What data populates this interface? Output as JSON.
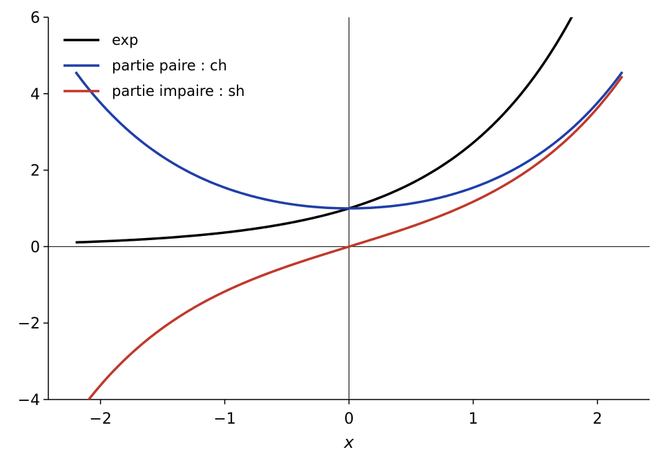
{
  "chart_data": {
    "type": "line",
    "xlabel": "x",
    "ylabel": "",
    "xlim": [
      -2.42,
      2.42
    ],
    "ylim": [
      -4,
      6
    ],
    "x_ticks": [
      -2,
      -1,
      0,
      1,
      2
    ],
    "x_tick_labels": [
      "−2",
      "−1",
      "0",
      "1",
      "2"
    ],
    "y_ticks": [
      -4,
      -2,
      0,
      2,
      4,
      6
    ],
    "y_tick_labels": [
      "−4",
      "−2",
      "0",
      "2",
      "4",
      "6"
    ],
    "grid": false,
    "legend_position": "upper-left",
    "series": [
      {
        "name": "exp",
        "color": "#000000",
        "x": [
          -2.2,
          -2.0,
          -1.8,
          -1.6,
          -1.4,
          -1.2,
          -1.0,
          -0.8,
          -0.6,
          -0.4,
          -0.2,
          0.0,
          0.2,
          0.4,
          0.6,
          0.8,
          1.0,
          1.2,
          1.4,
          1.6,
          1.8
        ],
        "y": [
          0.11,
          0.14,
          0.17,
          0.2,
          0.25,
          0.3,
          0.37,
          0.45,
          0.55,
          0.67,
          0.82,
          1.0,
          1.22,
          1.49,
          1.82,
          2.23,
          2.72,
          3.32,
          4.06,
          4.95,
          6.05
        ]
      },
      {
        "name": "partie paire : ch",
        "color": "#1f3fa8",
        "x": [
          -2.2,
          -2.0,
          -1.8,
          -1.6,
          -1.4,
          -1.2,
          -1.0,
          -0.8,
          -0.6,
          -0.4,
          -0.2,
          0.0,
          0.2,
          0.4,
          0.6,
          0.8,
          1.0,
          1.2,
          1.4,
          1.6,
          1.8,
          2.0,
          2.2
        ],
        "y": [
          4.57,
          3.76,
          3.11,
          2.58,
          2.15,
          1.81,
          1.54,
          1.34,
          1.19,
          1.08,
          1.02,
          1.0,
          1.02,
          1.08,
          1.19,
          1.34,
          1.54,
          1.81,
          2.15,
          2.58,
          3.11,
          3.76,
          4.57
        ]
      },
      {
        "name": "partie impaire : sh",
        "color": "#c0392b",
        "x": [
          -2.2,
          -2.0,
          -1.8,
          -1.6,
          -1.4,
          -1.2,
          -1.0,
          -0.8,
          -0.6,
          -0.4,
          -0.2,
          0.0,
          0.2,
          0.4,
          0.6,
          0.8,
          1.0,
          1.2,
          1.4,
          1.6,
          1.8,
          2.0,
          2.2
        ],
        "y": [
          -4.46,
          -3.63,
          -2.94,
          -2.38,
          -1.9,
          -1.51,
          -1.18,
          -0.89,
          -0.64,
          -0.41,
          -0.2,
          0.0,
          0.2,
          0.41,
          0.64,
          0.89,
          1.18,
          1.51,
          1.9,
          2.38,
          2.94,
          3.63,
          4.46
        ]
      }
    ]
  }
}
